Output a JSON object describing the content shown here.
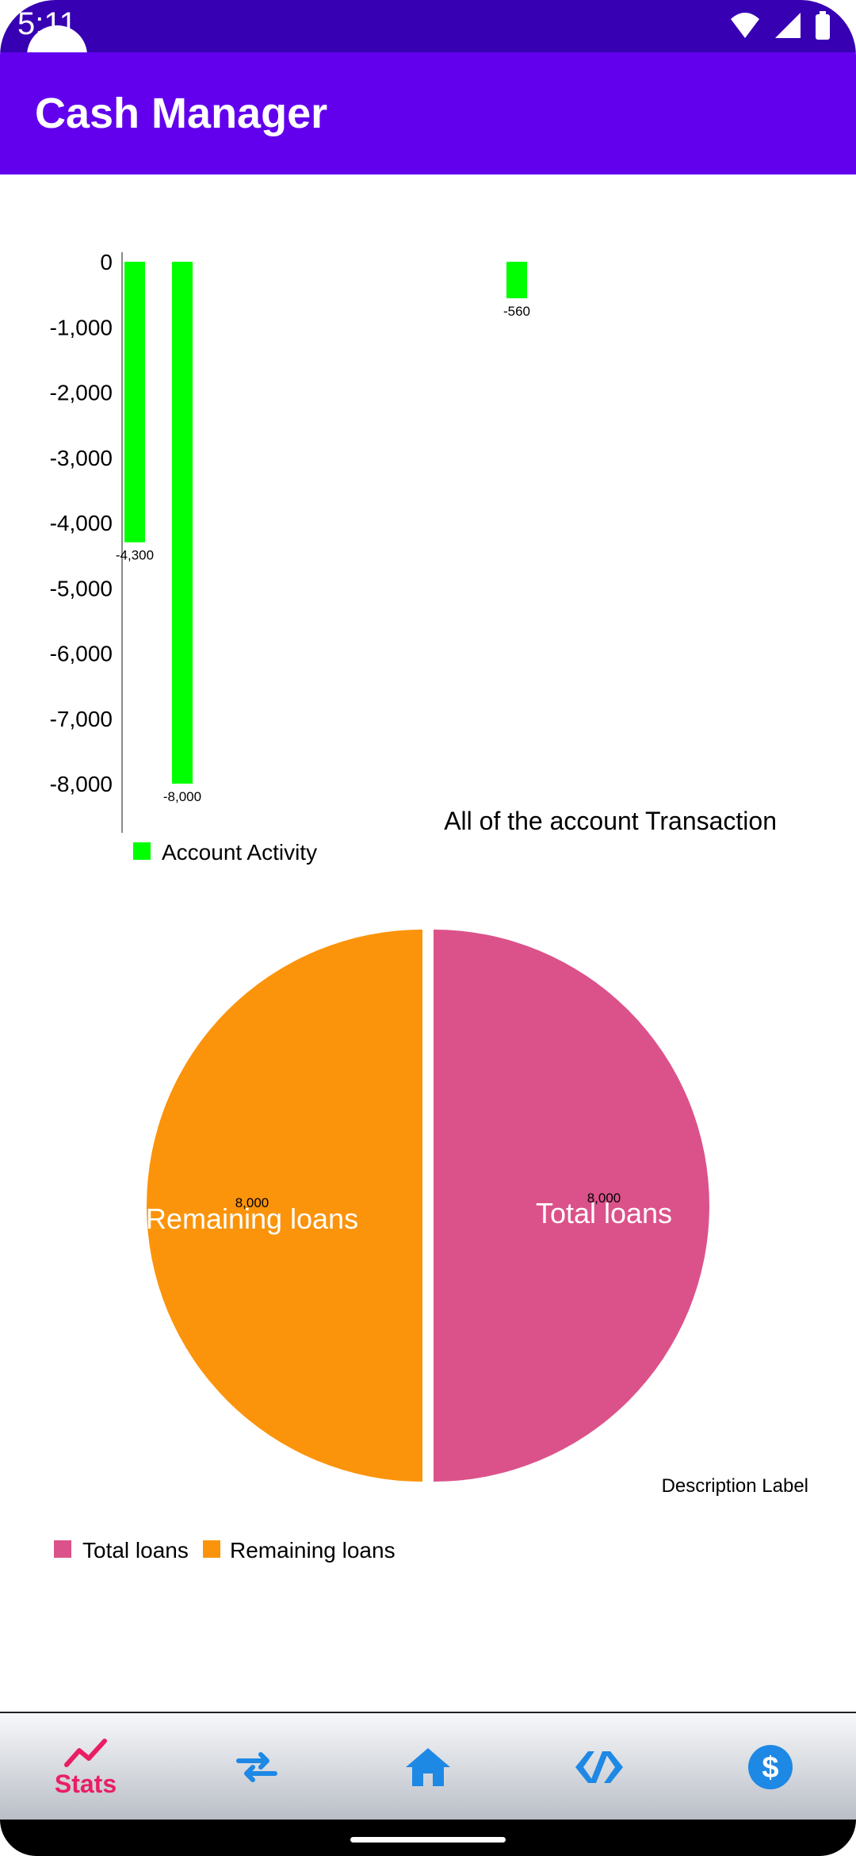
{
  "status_bar": {
    "time": "5:11"
  },
  "app_bar": {
    "title": "Cash Manager"
  },
  "bar_chart": {
    "y_ticks": [
      "0",
      "-1,000",
      "-2,000",
      "-3,000",
      "-4,000",
      "-5,000",
      "-6,000",
      "-7,000",
      "-8,000"
    ],
    "value_labels": [
      "-4,300",
      "-8,000",
      "-560"
    ],
    "legend_label": "Account Activity",
    "description": "All of the account Transaction",
    "color": "#00ff00"
  },
  "pie_chart": {
    "slice_labels": [
      "Total loans",
      "Remaining loans"
    ],
    "value_labels": [
      "8,000",
      "8,000"
    ],
    "description": "Description Label",
    "legend_labels": [
      "Total loans",
      "Remaining loans"
    ],
    "colors": [
      "#db528a",
      "#fb940b"
    ]
  },
  "chart_data": [
    {
      "type": "bar",
      "series": [
        {
          "name": "Account Activity",
          "values": [
            -4300,
            -8000,
            -560
          ]
        }
      ],
      "ylim": [
        -8000,
        0
      ],
      "y_ticks": [
        0,
        -1000,
        -2000,
        -3000,
        -4000,
        -5000,
        -6000,
        -7000,
        -8000
      ],
      "title": "All of the account Transaction",
      "legend": "bottom-left",
      "grid": false
    },
    {
      "type": "pie",
      "categories": [
        "Total loans",
        "Remaining loans"
      ],
      "values": [
        8000,
        8000
      ],
      "title": "Description Label",
      "legend": "bottom-left"
    }
  ],
  "bottom_nav": {
    "active_label": "Stats",
    "items": [
      "stats-icon",
      "transfer-icon",
      "home-icon",
      "code-icon",
      "dollar-icon"
    ],
    "active_color": "#e91e63",
    "inactive_color": "#1e88e5"
  }
}
